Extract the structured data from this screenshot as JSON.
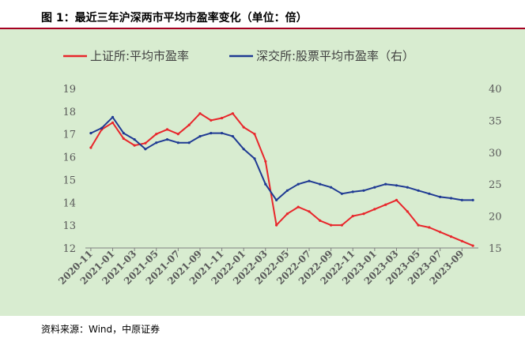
{
  "title": "图 1：最近三年沪深两市平均市盈率变化（单位：倍）",
  "source": "资料来源：Wind，中原证券",
  "colors": {
    "background": "#d8ecd0",
    "accent": "#a50021",
    "series_sse": "#e8262b",
    "series_szse": "#1f3a93"
  },
  "chart_data": {
    "type": "line",
    "title": "",
    "legend_position": "top",
    "grid": false,
    "x": [
      "2020-11",
      "2020-12",
      "2021-01",
      "2021-02",
      "2021-03",
      "2021-04",
      "2021-05",
      "2021-06",
      "2021-07",
      "2021-08",
      "2021-09",
      "2021-10",
      "2021-11",
      "2021-12",
      "2022-01",
      "2022-02",
      "2022-03",
      "2022-04",
      "2022-05",
      "2022-06",
      "2022-07",
      "2022-08",
      "2022-09",
      "2022-10",
      "2022-11",
      "2022-12",
      "2023-01",
      "2023-02",
      "2023-03",
      "2023-04",
      "2023-05",
      "2023-06",
      "2023-07",
      "2023-08",
      "2023-09",
      "2023-10"
    ],
    "x_tick_labels": [
      "2020-11",
      "2021-01",
      "2021-03",
      "2021-05",
      "2021-07",
      "2021-09",
      "2021-11",
      "2022-01",
      "2022-03",
      "2022-05",
      "2022-07",
      "2022-09",
      "2022-11",
      "2023-01",
      "2023-03",
      "2023-05",
      "2023-07",
      "2023-09"
    ],
    "y_left": {
      "lim": [
        12,
        19
      ],
      "ticks": [
        12,
        13,
        14,
        15,
        16,
        17,
        18,
        19
      ]
    },
    "y_right": {
      "lim": [
        15,
        40
      ],
      "ticks": [
        15,
        20,
        25,
        30,
        35,
        40
      ]
    },
    "series": [
      {
        "name": "上证所:平均市盈率",
        "axis": "left",
        "values": [
          16.4,
          17.2,
          17.5,
          16.8,
          16.5,
          16.6,
          17.0,
          17.2,
          17.0,
          17.4,
          17.9,
          17.6,
          17.7,
          17.9,
          17.3,
          17.0,
          15.8,
          13.0,
          13.5,
          13.8,
          13.6,
          13.2,
          13.0,
          13.0,
          13.4,
          13.5,
          13.7,
          13.9,
          14.1,
          13.6,
          13.0,
          12.9,
          12.7,
          12.5,
          12.3,
          12.1
        ]
      },
      {
        "name": "深交所:股票平均市盈率（右）",
        "axis": "right",
        "values": [
          33.0,
          33.8,
          35.5,
          33.0,
          32.0,
          30.5,
          31.5,
          32.0,
          31.5,
          31.5,
          32.5,
          33.0,
          33.0,
          32.5,
          30.5,
          29.0,
          25.0,
          22.5,
          24.0,
          25.0,
          25.5,
          25.0,
          24.5,
          23.5,
          23.8,
          24.0,
          24.5,
          25.0,
          24.8,
          24.5,
          24.0,
          23.5,
          23.0,
          22.8,
          22.5,
          22.5
        ]
      }
    ]
  }
}
